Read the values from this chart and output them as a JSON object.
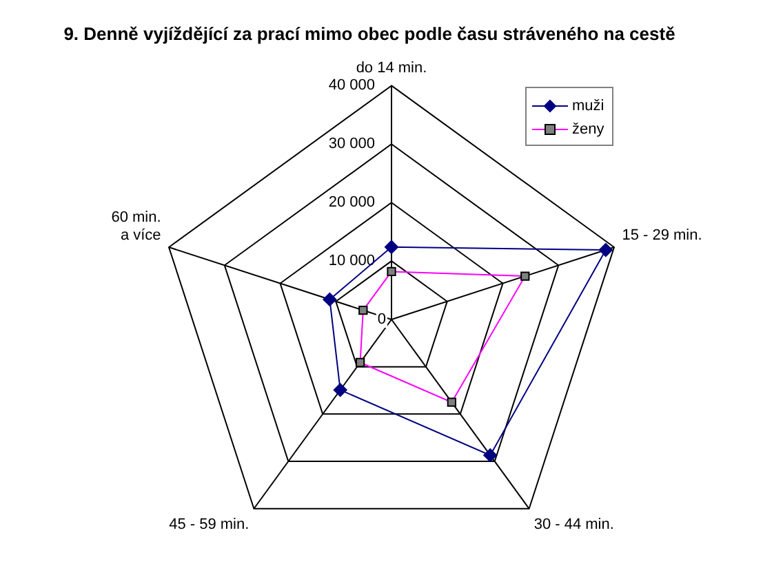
{
  "chart_data": {
    "type": "radar",
    "title": "9. Denně vyjíždějící za prací mimo obec podle času stráveného na cestě",
    "categories": [
      "do 14 min.",
      "15 - 29 min.",
      "30 - 44 min.",
      "45 - 59 min.",
      "60 min.\na více"
    ],
    "series": [
      {
        "name": "muži",
        "color": "#000080",
        "marker": "diamond",
        "values": [
          12400,
          38500,
          28700,
          14900,
          11100
        ]
      },
      {
        "name": "ženy",
        "color": "#ff00ff",
        "marker": "square",
        "values": [
          8200,
          24000,
          17500,
          9100,
          5100
        ]
      }
    ],
    "ylim": [
      0,
      40000
    ],
    "yticks": [
      0,
      {
        "value": 10000,
        "label": "10 000"
      },
      {
        "value": 20000,
        "label": "20 000"
      },
      {
        "value": 30000,
        "label": "30 000"
      },
      {
        "value": 40000,
        "label": "40 000"
      }
    ],
    "grid": true,
    "legend": "top right"
  }
}
